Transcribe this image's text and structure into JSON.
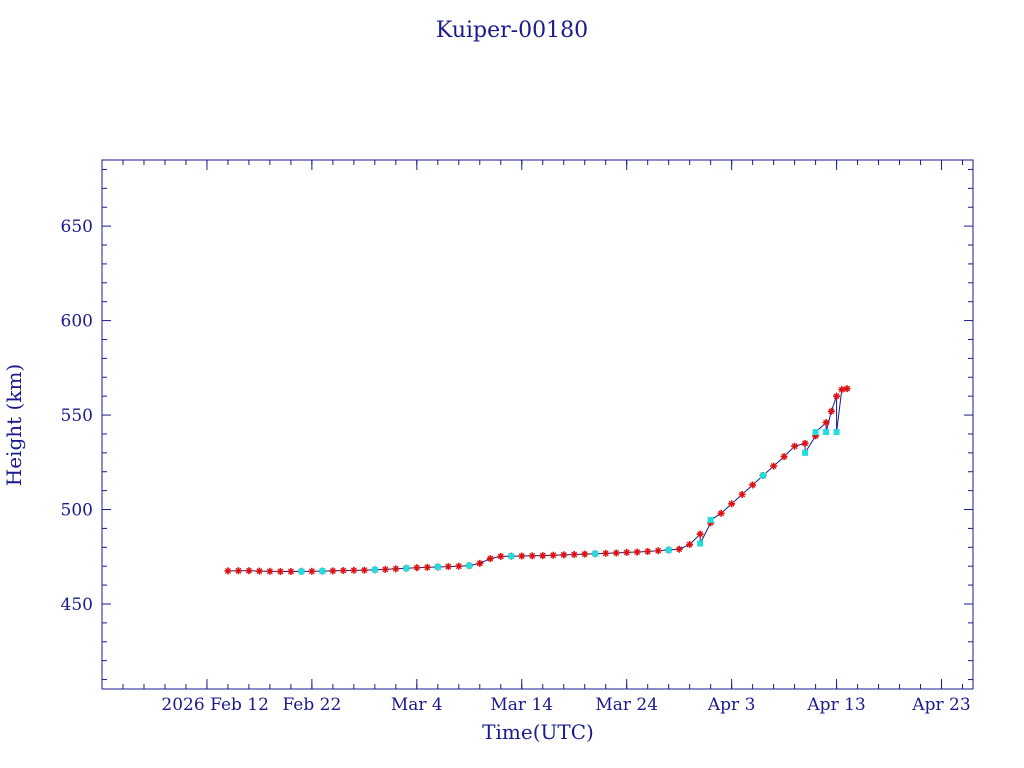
{
  "chart_data": {
    "type": "scatter",
    "title": "Kuiper-00180",
    "xlabel": "Time(UTC)",
    "ylabel": "Height (km)",
    "xlim": [
      "2026-02-02",
      "2026-04-26"
    ],
    "ylim": [
      405,
      685
    ],
    "yticks": [
      450,
      500,
      550,
      600,
      650
    ],
    "xticks": [
      {
        "date": "2026-02-12",
        "label": "2026 Feb 12"
      },
      {
        "date": "2026-02-22",
        "label": "Feb 22"
      },
      {
        "date": "2026-03-04",
        "label": "Mar  4"
      },
      {
        "date": "2026-03-14",
        "label": "Mar 14"
      },
      {
        "date": "2026-03-24",
        "label": "Mar 24"
      },
      {
        "date": "2026-04-03",
        "label": "Apr  3"
      },
      {
        "date": "2026-04-13",
        "label": "Apr 13"
      },
      {
        "date": "2026-04-23",
        "label": "Apr 23"
      }
    ],
    "colors": {
      "axis": "#1a1a8c",
      "line": "#1a1a8c",
      "series_a": "#dd1111",
      "series_b": "#22dddd"
    },
    "series": [
      {
        "marker": "star",
        "color": "#dd1111",
        "points": [
          [
            "2026-02-14",
            467.5
          ],
          [
            "2026-02-15",
            467.6
          ],
          [
            "2026-02-16",
            467.6
          ],
          [
            "2026-02-17",
            467.4
          ],
          [
            "2026-02-18",
            467.3
          ],
          [
            "2026-02-19",
            467.2
          ],
          [
            "2026-02-20",
            467.2
          ],
          [
            "2026-02-21",
            467.3
          ],
          [
            "2026-02-22",
            467.3
          ],
          [
            "2026-02-23",
            467.4
          ],
          [
            "2026-02-24",
            467.5
          ],
          [
            "2026-02-25",
            467.7
          ],
          [
            "2026-02-26",
            467.8
          ],
          [
            "2026-02-27",
            467.9
          ],
          [
            "2026-02-28",
            468.1
          ],
          [
            "2026-03-01",
            468.3
          ],
          [
            "2026-03-02",
            468.6
          ],
          [
            "2026-03-03",
            468.9
          ],
          [
            "2026-03-04",
            469.2
          ],
          [
            "2026-03-05",
            469.4
          ],
          [
            "2026-03-06",
            469.6
          ],
          [
            "2026-03-07",
            469.8
          ],
          [
            "2026-03-08",
            470.0
          ],
          [
            "2026-03-09",
            470.3
          ],
          [
            "2026-03-10",
            471.5
          ],
          [
            "2026-03-11",
            474.0
          ],
          [
            "2026-03-12",
            475.2
          ],
          [
            "2026-03-13",
            475.3
          ],
          [
            "2026-03-14",
            475.4
          ],
          [
            "2026-03-15",
            475.5
          ],
          [
            "2026-03-16",
            475.6
          ],
          [
            "2026-03-17",
            475.8
          ],
          [
            "2026-03-18",
            476.0
          ],
          [
            "2026-03-19",
            476.2
          ],
          [
            "2026-03-20",
            476.4
          ],
          [
            "2026-03-21",
            476.6
          ],
          [
            "2026-03-22",
            476.8
          ],
          [
            "2026-03-23",
            477.0
          ],
          [
            "2026-03-24",
            477.3
          ],
          [
            "2026-03-25",
            477.5
          ],
          [
            "2026-03-26",
            477.8
          ],
          [
            "2026-03-27",
            478.2
          ],
          [
            "2026-03-28",
            478.6
          ],
          [
            "2026-03-29",
            479.0
          ],
          [
            "2026-03-30",
            481.5
          ],
          [
            "2026-03-31",
            487.0
          ],
          [
            "2026-04-01",
            493.0
          ],
          [
            "2026-04-02",
            498.0
          ],
          [
            "2026-04-03",
            503.0
          ],
          [
            "2026-04-04",
            508.0
          ],
          [
            "2026-04-05",
            513.0
          ],
          [
            "2026-04-06",
            518.0
          ],
          [
            "2026-04-07",
            523.0
          ],
          [
            "2026-04-08",
            528.0
          ],
          [
            "2026-04-09",
            533.5
          ],
          [
            "2026-04-10",
            535.0
          ],
          [
            "2026-04-11",
            539.0
          ],
          [
            "2026-04-12",
            546.0
          ],
          [
            "2026-04-12.5",
            552.0
          ],
          [
            "2026-04-13",
            560.0
          ],
          [
            "2026-04-13.5",
            563.5
          ],
          [
            "2026-04-14",
            564.0
          ]
        ]
      },
      {
        "marker": "square",
        "color": "#22dddd",
        "points": [
          [
            "2026-02-21",
            467.2
          ],
          [
            "2026-02-23",
            467.4
          ],
          [
            "2026-02-28",
            468.1
          ],
          [
            "2026-03-03",
            468.9
          ],
          [
            "2026-03-06",
            469.6
          ],
          [
            "2026-03-09",
            470.3
          ],
          [
            "2026-03-13",
            475.3
          ],
          [
            "2026-03-21",
            476.6
          ],
          [
            "2026-03-28",
            478.6
          ],
          [
            "2026-03-31",
            482.0
          ],
          [
            "2026-04-01",
            494.5
          ],
          [
            "2026-04-06",
            518.0
          ],
          [
            "2026-04-10",
            530.0
          ],
          [
            "2026-04-11",
            541.0
          ],
          [
            "2026-04-12",
            541.0
          ],
          [
            "2026-04-13",
            541.0
          ]
        ]
      }
    ]
  }
}
